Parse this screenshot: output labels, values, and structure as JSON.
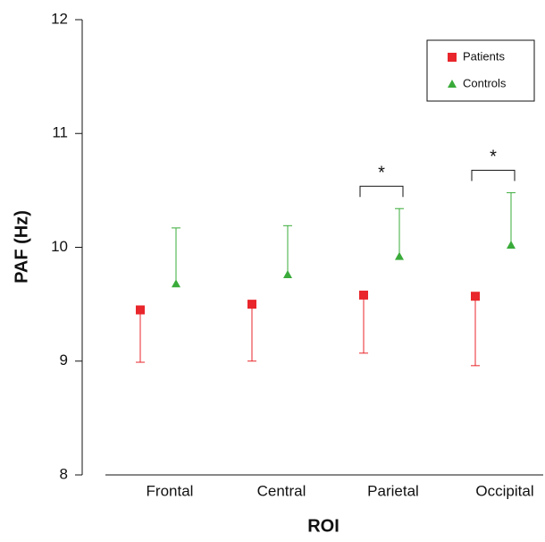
{
  "chart_data": {
    "type": "errorbar",
    "x_label": "ROI",
    "y_label": "PAF (Hz)",
    "categories": [
      "Frontal",
      "Central",
      "Parietal",
      "Occipital"
    ],
    "series": [
      {
        "name": "Patients",
        "color": "#e8262b",
        "marker": "square",
        "error_direction": "down",
        "values": [
          9.45,
          9.5,
          9.58,
          9.57
        ],
        "errors": [
          0.46,
          0.5,
          0.51,
          0.61
        ]
      },
      {
        "name": "Controls",
        "color": "#3aab3a",
        "marker": "triangle",
        "error_direction": "up",
        "values": [
          9.68,
          9.76,
          9.92,
          10.02
        ],
        "errors": [
          0.49,
          0.43,
          0.42,
          0.46
        ]
      }
    ],
    "ylim": [
      8,
      12
    ],
    "yticks": [
      8,
      9,
      10,
      11,
      12
    ],
    "legend": "top-right",
    "annotations": [
      {
        "text": "*",
        "category": "Parietal"
      },
      {
        "text": "*",
        "category": "Occipital"
      }
    ]
  }
}
